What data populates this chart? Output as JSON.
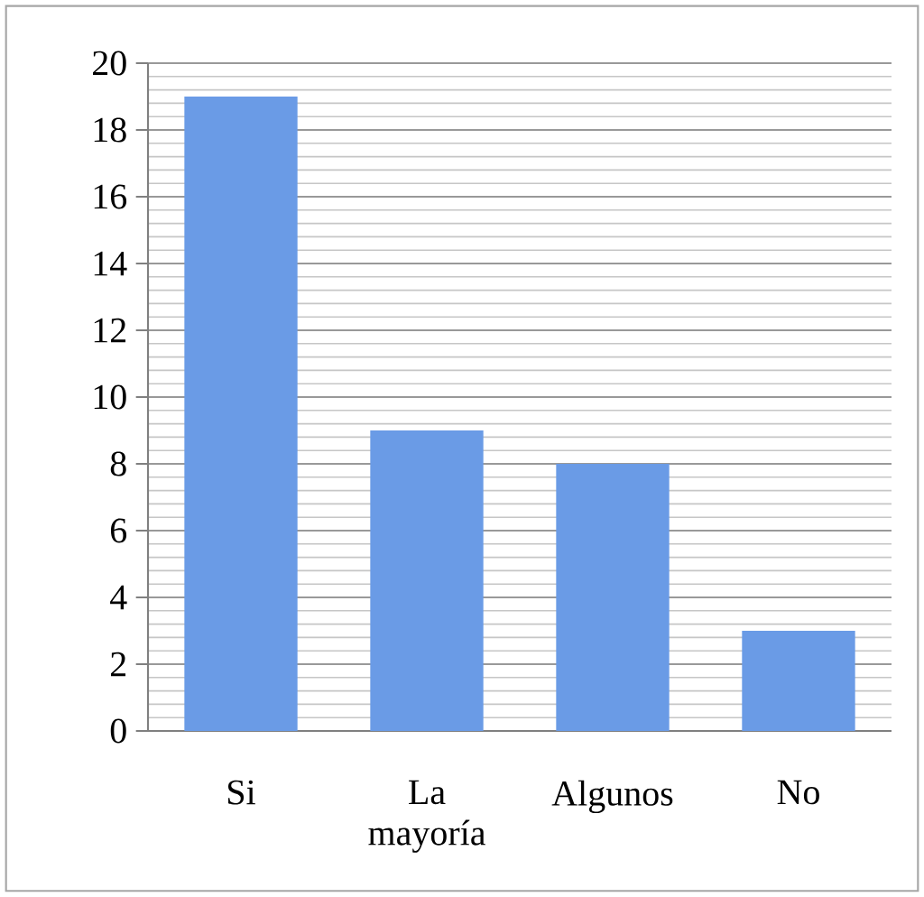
{
  "chart_data": {
    "type": "bar",
    "categories": [
      "Si",
      "La mayoría",
      "Algunos",
      "No"
    ],
    "values": [
      19,
      9,
      8,
      3
    ],
    "color": "#6a9be6",
    "ylim": [
      0,
      20
    ],
    "yticks": [
      0,
      2,
      4,
      6,
      8,
      10,
      12,
      14,
      16,
      18,
      20
    ],
    "grid": "y"
  }
}
